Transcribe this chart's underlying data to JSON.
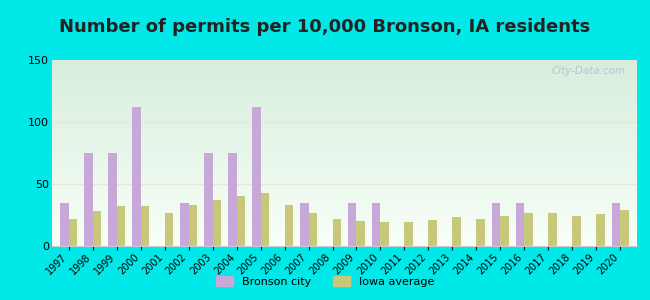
{
  "title": "Number of permits per 10,000 Bronson, IA residents",
  "years": [
    1997,
    1998,
    1999,
    2000,
    2001,
    2002,
    2003,
    2004,
    2005,
    2006,
    2007,
    2008,
    2009,
    2010,
    2011,
    2012,
    2013,
    2014,
    2015,
    2016,
    2017,
    2018,
    2019,
    2020
  ],
  "bronson": [
    35,
    75,
    75,
    112,
    0,
    35,
    75,
    75,
    112,
    0,
    35,
    0,
    35,
    35,
    0,
    0,
    0,
    0,
    35,
    35,
    0,
    0,
    0,
    35
  ],
  "iowa": [
    22,
    28,
    32,
    32,
    27,
    33,
    37,
    40,
    43,
    33,
    27,
    22,
    20,
    19,
    19,
    21,
    23,
    22,
    24,
    27,
    27,
    24,
    26,
    29
  ],
  "bronson_color": "#c8a8d8",
  "iowa_color": "#c8c87a",
  "outer_bg": "#00e8e8",
  "ylim": [
    0,
    150
  ],
  "yticks": [
    0,
    50,
    100,
    150
  ],
  "bar_width": 0.35,
  "title_fontsize": 13,
  "legend_labels": [
    "Bronson city",
    "Iowa average"
  ],
  "watermark": "City-Data.com",
  "grad_top": "#d8eedd",
  "grad_bottom": "#f8fff8",
  "grid_color": "#e0e8d8",
  "spine_color": "#cccccc"
}
